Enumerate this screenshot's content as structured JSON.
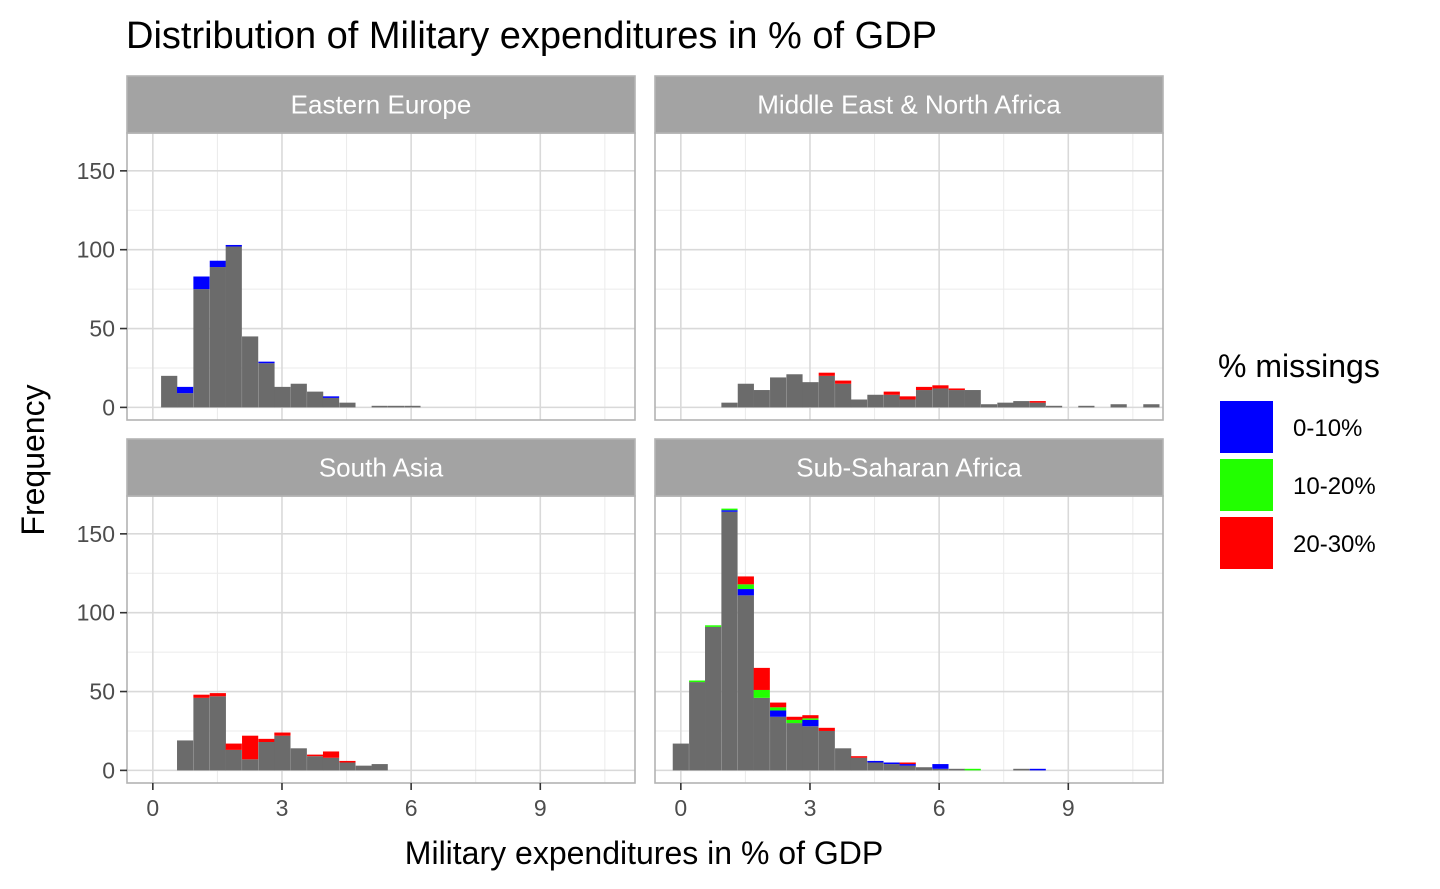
{
  "chart_data": {
    "type": "bar",
    "subtype": "faceted stacked histogram",
    "title": "Distribution of Military expenditures in % of GDP",
    "xlabel": "Military expenditures in % of GDP",
    "ylabel": "Frequency",
    "xlim": [
      -0.6,
      11.2
    ],
    "ylim": [
      -8,
      174
    ],
    "x_ticks": [
      0,
      3,
      6,
      9
    ],
    "y_ticks": [
      0,
      50,
      100,
      150
    ],
    "bin_width": 0.376,
    "grid": true,
    "legend": {
      "title": "% missings",
      "position": "right",
      "entries": [
        {
          "label": "0-10%",
          "color": "#0000ff"
        },
        {
          "label": "10-20%",
          "color": "#22ff00"
        },
        {
          "label": "20-30%",
          "color": "#ff0000"
        }
      ]
    },
    "base_color": "#6b6b6b",
    "strip_color": "#a3a3a3",
    "panels": [
      {
        "name": "Eastern Europe",
        "bins": [
          {
            "x": 0.38,
            "total": 20,
            "b": 0,
            "g": 0,
            "r": 0
          },
          {
            "x": 0.75,
            "total": 13,
            "b": 4,
            "g": 0,
            "r": 0
          },
          {
            "x": 1.13,
            "total": 83,
            "b": 8,
            "g": 0,
            "r": 0
          },
          {
            "x": 1.51,
            "total": 93,
            "b": 4,
            "g": 0,
            "r": 0
          },
          {
            "x": 1.88,
            "total": 103,
            "b": 1,
            "g": 0,
            "r": 0
          },
          {
            "x": 2.26,
            "total": 45,
            "b": 0,
            "g": 0,
            "r": 0
          },
          {
            "x": 2.64,
            "total": 29,
            "b": 1,
            "g": 0,
            "r": 0
          },
          {
            "x": 3.01,
            "total": 13,
            "b": 0,
            "g": 0,
            "r": 0
          },
          {
            "x": 3.39,
            "total": 15,
            "b": 0,
            "g": 0,
            "r": 0
          },
          {
            "x": 3.77,
            "total": 10,
            "b": 0,
            "g": 0,
            "r": 0
          },
          {
            "x": 4.14,
            "total": 7,
            "b": 1,
            "g": 0,
            "r": 0
          },
          {
            "x": 4.52,
            "total": 3,
            "b": 0,
            "g": 0,
            "r": 0
          },
          {
            "x": 5.27,
            "total": 1,
            "b": 0,
            "g": 0,
            "r": 0
          },
          {
            "x": 5.65,
            "total": 1,
            "b": 0,
            "g": 0,
            "r": 0
          },
          {
            "x": 6.03,
            "total": 1,
            "b": 0,
            "g": 0,
            "r": 0
          }
        ]
      },
      {
        "name": "Middle East & North Africa",
        "bins": [
          {
            "x": 1.13,
            "total": 3,
            "b": 0,
            "g": 0,
            "r": 0
          },
          {
            "x": 1.51,
            "total": 15,
            "b": 0,
            "g": 0,
            "r": 0
          },
          {
            "x": 1.88,
            "total": 11,
            "b": 0,
            "g": 0,
            "r": 0
          },
          {
            "x": 2.26,
            "total": 19,
            "b": 0,
            "g": 0,
            "r": 0
          },
          {
            "x": 2.64,
            "total": 21,
            "b": 0,
            "g": 0,
            "r": 0
          },
          {
            "x": 3.01,
            "total": 16,
            "b": 0,
            "g": 0,
            "r": 0
          },
          {
            "x": 3.39,
            "total": 22,
            "b": 0,
            "g": 0,
            "r": 2
          },
          {
            "x": 3.77,
            "total": 17,
            "b": 0,
            "g": 0,
            "r": 2
          },
          {
            "x": 4.14,
            "total": 5,
            "b": 0,
            "g": 0,
            "r": 0
          },
          {
            "x": 4.52,
            "total": 8,
            "b": 0,
            "g": 0,
            "r": 0
          },
          {
            "x": 4.9,
            "total": 10,
            "b": 0,
            "g": 0,
            "r": 2
          },
          {
            "x": 5.27,
            "total": 7,
            "b": 0,
            "g": 0,
            "r": 2
          },
          {
            "x": 5.65,
            "total": 13,
            "b": 0,
            "g": 0,
            "r": 2
          },
          {
            "x": 6.03,
            "total": 14,
            "b": 0,
            "g": 0,
            "r": 2
          },
          {
            "x": 6.41,
            "total": 12,
            "b": 0,
            "g": 0,
            "r": 1
          },
          {
            "x": 6.78,
            "total": 11,
            "b": 0,
            "g": 0,
            "r": 0
          },
          {
            "x": 7.16,
            "total": 2,
            "b": 0,
            "g": 0,
            "r": 0
          },
          {
            "x": 7.54,
            "total": 3,
            "b": 0,
            "g": 0,
            "r": 0
          },
          {
            "x": 7.91,
            "total": 4,
            "b": 0,
            "g": 0,
            "r": 0
          },
          {
            "x": 8.29,
            "total": 4,
            "b": 0,
            "g": 0,
            "r": 1
          },
          {
            "x": 8.67,
            "total": 1,
            "b": 0,
            "g": 0,
            "r": 0
          },
          {
            "x": 9.42,
            "total": 1,
            "b": 0,
            "g": 0,
            "r": 0
          },
          {
            "x": 10.17,
            "total": 2,
            "b": 0,
            "g": 0,
            "r": 0
          },
          {
            "x": 10.93,
            "total": 2,
            "b": 0,
            "g": 0,
            "r": 0
          }
        ]
      },
      {
        "name": "South Asia",
        "bins": [
          {
            "x": 0.75,
            "total": 19,
            "b": 0,
            "g": 0,
            "r": 0
          },
          {
            "x": 1.13,
            "total": 48,
            "b": 0,
            "g": 0,
            "r": 2
          },
          {
            "x": 1.51,
            "total": 49,
            "b": 0,
            "g": 0,
            "r": 2
          },
          {
            "x": 1.88,
            "total": 17,
            "b": 0,
            "g": 0,
            "r": 4
          },
          {
            "x": 2.26,
            "total": 22,
            "b": 0,
            "g": 0,
            "r": 15
          },
          {
            "x": 2.64,
            "total": 20,
            "b": 0,
            "g": 0,
            "r": 2
          },
          {
            "x": 3.01,
            "total": 24,
            "b": 0,
            "g": 0,
            "r": 2
          },
          {
            "x": 3.39,
            "total": 14,
            "b": 0,
            "g": 0,
            "r": 0
          },
          {
            "x": 3.77,
            "total": 10,
            "b": 0,
            "g": 0,
            "r": 1
          },
          {
            "x": 4.14,
            "total": 12,
            "b": 0,
            "g": 0,
            "r": 4
          },
          {
            "x": 4.52,
            "total": 6,
            "b": 0,
            "g": 0,
            "r": 1
          },
          {
            "x": 4.9,
            "total": 3,
            "b": 0,
            "g": 0,
            "r": 0
          },
          {
            "x": 5.27,
            "total": 4,
            "b": 0,
            "g": 0,
            "r": 0
          }
        ]
      },
      {
        "name": "Sub-Saharan Africa",
        "bins": [
          {
            "x": 0.0,
            "total": 17,
            "b": 0,
            "g": 0,
            "r": 0
          },
          {
            "x": 0.38,
            "total": 57,
            "b": 0,
            "g": 1,
            "r": 0
          },
          {
            "x": 0.75,
            "total": 92,
            "b": 0,
            "g": 1,
            "r": 0
          },
          {
            "x": 1.13,
            "total": 166,
            "b": 1,
            "g": 1,
            "r": 0
          },
          {
            "x": 1.51,
            "total": 123,
            "b": 4,
            "g": 3,
            "r": 5
          },
          {
            "x": 1.88,
            "total": 65,
            "b": 0,
            "g": 5,
            "r": 14
          },
          {
            "x": 2.26,
            "total": 43,
            "b": 4,
            "g": 2,
            "r": 3
          },
          {
            "x": 2.64,
            "total": 34,
            "b": 0,
            "g": 2,
            "r": 2
          },
          {
            "x": 3.01,
            "total": 35,
            "b": 4,
            "g": 1,
            "r": 2
          },
          {
            "x": 3.39,
            "total": 27,
            "b": 0,
            "g": 0,
            "r": 2
          },
          {
            "x": 3.77,
            "total": 14,
            "b": 0,
            "g": 0,
            "r": 0
          },
          {
            "x": 4.14,
            "total": 9,
            "b": 0,
            "g": 0,
            "r": 1
          },
          {
            "x": 4.52,
            "total": 6,
            "b": 1,
            "g": 0,
            "r": 0
          },
          {
            "x": 4.9,
            "total": 5,
            "b": 1,
            "g": 0,
            "r": 0
          },
          {
            "x": 5.27,
            "total": 5,
            "b": 1,
            "g": 0,
            "r": 1
          },
          {
            "x": 5.65,
            "total": 2,
            "b": 0,
            "g": 0,
            "r": 0
          },
          {
            "x": 6.03,
            "total": 4,
            "b": 3,
            "g": 0,
            "r": 0
          },
          {
            "x": 6.41,
            "total": 1,
            "b": 0,
            "g": 0,
            "r": 0
          },
          {
            "x": 6.78,
            "total": 1,
            "b": 0,
            "g": 1,
            "r": 0
          },
          {
            "x": 7.91,
            "total": 1,
            "b": 0,
            "g": 0,
            "r": 0
          },
          {
            "x": 8.29,
            "total": 1,
            "b": 1,
            "g": 0,
            "r": 0
          }
        ]
      }
    ]
  }
}
